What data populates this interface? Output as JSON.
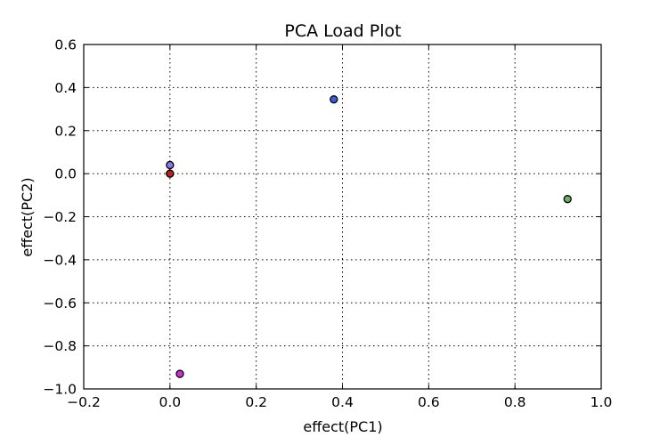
{
  "chart_data": {
    "type": "scatter",
    "title": "PCA Load Plot",
    "xlabel": "effect(PC1)",
    "ylabel": "effect(PC2)",
    "xlim": [
      -0.2,
      1.0
    ],
    "ylim": [
      -1.0,
      0.6
    ],
    "xticks": [
      -0.2,
      0.0,
      0.2,
      0.4,
      0.6,
      0.8,
      1.0
    ],
    "xtick_labels": [
      "−0.2",
      "0.0",
      "0.2",
      "0.4",
      "0.6",
      "0.8",
      "1.0"
    ],
    "yticks": [
      -1.0,
      -0.8,
      -0.6,
      -0.4,
      -0.2,
      0.0,
      0.2,
      0.4,
      0.6
    ],
    "ytick_labels": [
      "−1.0",
      "−0.8",
      "−0.6",
      "−0.4",
      "−0.2",
      "0.0",
      "0.2",
      "0.4",
      "0.6"
    ],
    "grid": true,
    "points": [
      {
        "x": 0.38,
        "y": 0.345,
        "color": "#3f5fe0"
      },
      {
        "x": 0.0,
        "y": 0.04,
        "color": "#8a7ae6"
      },
      {
        "x": 0.0,
        "y": 0.0,
        "color": "#e0c040"
      },
      {
        "x": 0.0,
        "y": 0.0,
        "color": "#c0201a"
      },
      {
        "x": 0.922,
        "y": -0.118,
        "color": "#6ab06a"
      },
      {
        "x": 0.023,
        "y": -0.93,
        "color": "#d030d8"
      }
    ]
  }
}
